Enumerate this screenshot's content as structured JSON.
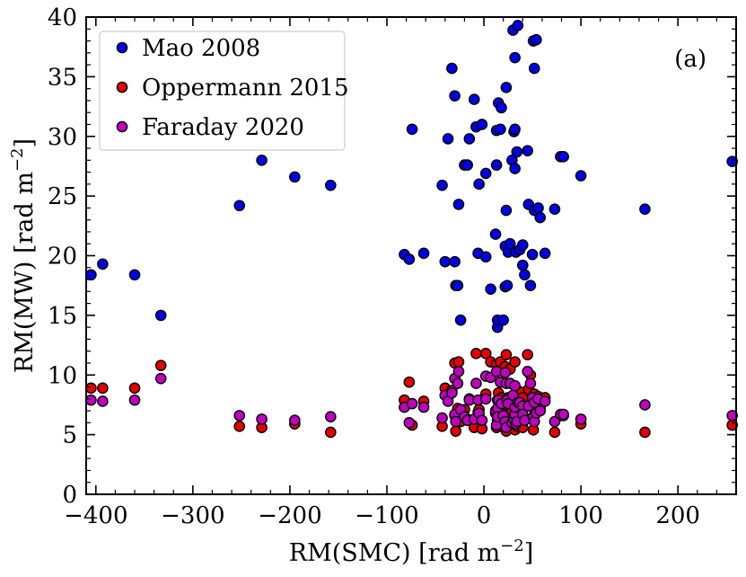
{
  "chart_data": {
    "type": "scatter",
    "xlabel": "RM(SMC) [rad m",
    "xlabel_sup": "−2",
    "xlabel_end": "]",
    "ylabel": "RM(MW) [rad m",
    "ylabel_sup": "−2",
    "ylabel_end": "]",
    "panel_label": "(a)",
    "xlim": [
      -410,
      260
    ],
    "ylim": [
      0,
      40
    ],
    "xticks": [
      -400,
      -300,
      -200,
      -100,
      0,
      100,
      200
    ],
    "xtick_labels": [
      "−400",
      "−300",
      "−200",
      "−100",
      "0",
      "100",
      "200"
    ],
    "yticks": [
      0,
      5,
      10,
      15,
      20,
      25,
      30,
      35,
      40
    ],
    "ytick_labels": [
      "0",
      "5",
      "10",
      "15",
      "20",
      "25",
      "30",
      "35",
      "40"
    ],
    "grid": false,
    "legend_position": "top-left",
    "series": [
      {
        "name": "Mao 2008",
        "color": "#0000e6",
        "points": [
          [
            -405,
            18.4
          ],
          [
            -393,
            19.3
          ],
          [
            -360,
            18.4
          ],
          [
            -333,
            15.0
          ],
          [
            -252,
            24.2
          ],
          [
            -229,
            28.0
          ],
          [
            -195,
            26.6
          ],
          [
            -158,
            25.9
          ],
          [
            -82,
            20.1
          ],
          [
            -77,
            19.7
          ],
          [
            -74,
            30.6
          ],
          [
            -62,
            20.2
          ],
          [
            -43,
            25.9
          ],
          [
            -40,
            19.5
          ],
          [
            -37,
            29.8
          ],
          [
            -33,
            35.7
          ],
          [
            -30,
            19.5
          ],
          [
            -30,
            33.4
          ],
          [
            -29,
            17.5
          ],
          [
            -27,
            17.5
          ],
          [
            -26,
            24.3
          ],
          [
            -24,
            14.6
          ],
          [
            -20,
            27.6
          ],
          [
            -17,
            27.6
          ],
          [
            -15,
            29.8
          ],
          [
            -10,
            33.1
          ],
          [
            -8,
            30.8
          ],
          [
            -6,
            20.2
          ],
          [
            -5,
            26.0
          ],
          [
            -2,
            31.0
          ],
          [
            2,
            19.9
          ],
          [
            2,
            26.9
          ],
          [
            7,
            17.2
          ],
          [
            12,
            21.8
          ],
          [
            13,
            27.6
          ],
          [
            13,
            30.5
          ],
          [
            14,
            14.0
          ],
          [
            14,
            14.6
          ],
          [
            15,
            32.8
          ],
          [
            17,
            30.6
          ],
          [
            18,
            32.4
          ],
          [
            20,
            14.6
          ],
          [
            22,
            17.4
          ],
          [
            22,
            20.8
          ],
          [
            23,
            34.1
          ],
          [
            23,
            23.8
          ],
          [
            24,
            17.5
          ],
          [
            25,
            20.3
          ],
          [
            27,
            21.0
          ],
          [
            29,
            28.0
          ],
          [
            30,
            38.9
          ],
          [
            31,
            30.4
          ],
          [
            32,
            30.6
          ],
          [
            32,
            27.3
          ],
          [
            32,
            36.6
          ],
          [
            33,
            20.3
          ],
          [
            34,
            28.7
          ],
          [
            35,
            39.3
          ],
          [
            37,
            20.5
          ],
          [
            40,
            20.9
          ],
          [
            40,
            19.2
          ],
          [
            42,
            18.4
          ],
          [
            45,
            28.8
          ],
          [
            46,
            24.3
          ],
          [
            48,
            17.5
          ],
          [
            50,
            20.1
          ],
          [
            51,
            38.0
          ],
          [
            52,
            23.8
          ],
          [
            52,
            35.7
          ],
          [
            54,
            38.1
          ],
          [
            56,
            24.0
          ],
          [
            58,
            23.2
          ],
          [
            63,
            20.2
          ],
          [
            73,
            23.9
          ],
          [
            79,
            28.3
          ],
          [
            82,
            28.3
          ],
          [
            100,
            26.7
          ],
          [
            166,
            23.9
          ],
          [
            256,
            27.9
          ]
        ]
      },
      {
        "name": "Oppermann 2015",
        "color": "#e60000",
        "points": [
          [
            -405,
            8.9
          ],
          [
            -393,
            8.9
          ],
          [
            -360,
            8.9
          ],
          [
            -333,
            10.8
          ],
          [
            -252,
            5.7
          ],
          [
            -229,
            5.6
          ],
          [
            -195,
            5.9
          ],
          [
            -158,
            5.2
          ],
          [
            -82,
            7.9
          ],
          [
            -77,
            9.4
          ],
          [
            -74,
            5.8
          ],
          [
            -62,
            7.8
          ],
          [
            -43,
            5.7
          ],
          [
            -40,
            8.9
          ],
          [
            -37,
            8.1
          ],
          [
            -33,
            8.7
          ],
          [
            -30,
            11.0
          ],
          [
            -30,
            6.6
          ],
          [
            -29,
            5.3
          ],
          [
            -27,
            7.2
          ],
          [
            -26,
            11.1
          ],
          [
            -24,
            6.1
          ],
          [
            -20,
            7.1
          ],
          [
            -17,
            6.3
          ],
          [
            -15,
            8.0
          ],
          [
            -10,
            5.6
          ],
          [
            -8,
            11.8
          ],
          [
            -6,
            6.9
          ],
          [
            -5,
            7.1
          ],
          [
            -2,
            5.5
          ],
          [
            2,
            8.4
          ],
          [
            2,
            11.8
          ],
          [
            7,
            11.1
          ],
          [
            12,
            6.8
          ],
          [
            13,
            10.9
          ],
          [
            13,
            5.6
          ],
          [
            14,
            7.9
          ],
          [
            14,
            6.2
          ],
          [
            15,
            8.5
          ],
          [
            17,
            11.1
          ],
          [
            18,
            8.1
          ],
          [
            20,
            7.5
          ],
          [
            22,
            6.6
          ],
          [
            22,
            10.7
          ],
          [
            23,
            11.7
          ],
          [
            23,
            5.3
          ],
          [
            24,
            7.7
          ],
          [
            25,
            8.1
          ],
          [
            27,
            10.5
          ],
          [
            29,
            7.0
          ],
          [
            30,
            7.9
          ],
          [
            31,
            6.1
          ],
          [
            32,
            5.4
          ],
          [
            32,
            8.3
          ],
          [
            32,
            11.1
          ],
          [
            33,
            6.7
          ],
          [
            34,
            5.7
          ],
          [
            35,
            6.6
          ],
          [
            37,
            8.6
          ],
          [
            40,
            8.1
          ],
          [
            40,
            5.6
          ],
          [
            42,
            6.3
          ],
          [
            45,
            11.7
          ],
          [
            46,
            8.8
          ],
          [
            48,
            10.0
          ],
          [
            50,
            7.3
          ],
          [
            51,
            5.4
          ],
          [
            52,
            8.4
          ],
          [
            52,
            6.6
          ],
          [
            54,
            7.2
          ],
          [
            56,
            8.2
          ],
          [
            58,
            7.3
          ],
          [
            63,
            8.1
          ],
          [
            73,
            5.2
          ],
          [
            79,
            6.6
          ],
          [
            82,
            6.6
          ],
          [
            100,
            5.9
          ],
          [
            166,
            5.2
          ],
          [
            256,
            5.8
          ]
        ]
      },
      {
        "name": "Faraday 2020",
        "color": "#c000c0",
        "points": [
          [
            -405,
            7.9
          ],
          [
            -393,
            7.8
          ],
          [
            -360,
            7.9
          ],
          [
            -333,
            9.7
          ],
          [
            -252,
            6.6
          ],
          [
            -229,
            6.3
          ],
          [
            -195,
            6.2
          ],
          [
            -158,
            6.5
          ],
          [
            -82,
            7.3
          ],
          [
            -77,
            6.0
          ],
          [
            -74,
            7.6
          ],
          [
            -62,
            7.3
          ],
          [
            -43,
            6.4
          ],
          [
            -40,
            8.3
          ],
          [
            -37,
            7.8
          ],
          [
            -33,
            8.5
          ],
          [
            -30,
            9.7
          ],
          [
            -30,
            6.7
          ],
          [
            -29,
            6.1
          ],
          [
            -27,
            9.3
          ],
          [
            -26,
            10.3
          ],
          [
            -24,
            7.1
          ],
          [
            -20,
            6.5
          ],
          [
            -17,
            6.2
          ],
          [
            -15,
            7.9
          ],
          [
            -10,
            6.3
          ],
          [
            -8,
            9.3
          ],
          [
            -6,
            7.9
          ],
          [
            -5,
            6.8
          ],
          [
            -2,
            6.2
          ],
          [
            2,
            8.0
          ],
          [
            2,
            9.9
          ],
          [
            7,
            9.8
          ],
          [
            12,
            7.0
          ],
          [
            13,
            10.3
          ],
          [
            13,
            5.8
          ],
          [
            14,
            7.2
          ],
          [
            14,
            6.5
          ],
          [
            15,
            7.9
          ],
          [
            17,
            9.4
          ],
          [
            18,
            7.6
          ],
          [
            20,
            6.6
          ],
          [
            22,
            6.1
          ],
          [
            22,
            10.2
          ],
          [
            23,
            9.3
          ],
          [
            23,
            5.6
          ],
          [
            24,
            7.9
          ],
          [
            25,
            7.6
          ],
          [
            27,
            9.3
          ],
          [
            29,
            6.0
          ],
          [
            30,
            8.3
          ],
          [
            31,
            6.3
          ],
          [
            32,
            6.7
          ],
          [
            32,
            7.3
          ],
          [
            32,
            9.1
          ],
          [
            33,
            5.9
          ],
          [
            34,
            6.1
          ],
          [
            35,
            7.7
          ],
          [
            37,
            7.7
          ],
          [
            40,
            7.4
          ],
          [
            40,
            6.7
          ],
          [
            42,
            6.2
          ],
          [
            45,
            10.3
          ],
          [
            46,
            7.4
          ],
          [
            48,
            9.3
          ],
          [
            50,
            8.1
          ],
          [
            51,
            6.5
          ],
          [
            52,
            7.7
          ],
          [
            52,
            6.1
          ],
          [
            54,
            6.8
          ],
          [
            56,
            8.0
          ],
          [
            58,
            7.0
          ],
          [
            63,
            7.8
          ],
          [
            73,
            6.1
          ],
          [
            79,
            6.7
          ],
          [
            82,
            6.7
          ],
          [
            100,
            6.3
          ],
          [
            166,
            7.5
          ],
          [
            256,
            6.6
          ]
        ]
      }
    ]
  }
}
